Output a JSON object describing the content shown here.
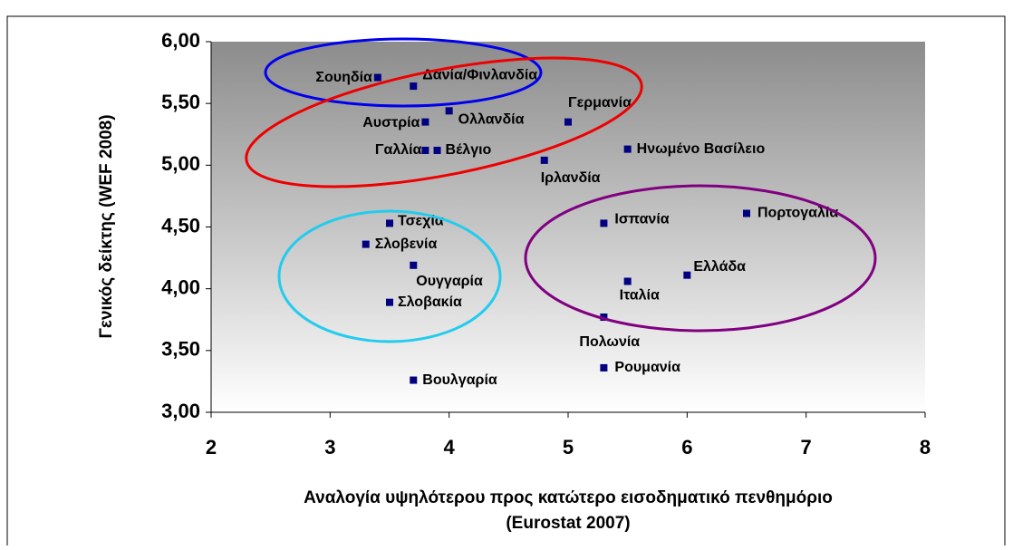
{
  "chart_data": {
    "type": "scatter",
    "x_label": "Αναλογία υψηλότερου προς κατώτερο εισοδηματικό πενθημόριο",
    "x_label_2": "(Eurostat 2007)",
    "y_label": "Γενικός δείκτης (WEF 2008)",
    "point_labels": [
      "Σουηδία",
      "Δανία/Φινλανδία",
      "Αυστρία",
      "Ολλανδία",
      "Γερμανία",
      "Γαλλία",
      "Βέλγιο",
      "Ιρλανδία",
      "Ηνωμένο Βασίλειο",
      "Τσεχία",
      "Σλοβενία",
      "Ουγγαρία",
      "Σλοβακία",
      "Βουλγαρία",
      "Ισπανία",
      "Πορτογαλία",
      "Ελλάδα",
      "Ιταλία",
      "Πολωνία",
      "Ρουμανία"
    ],
    "x": [
      3.4,
      3.7,
      3.8,
      4.0,
      5.0,
      3.8,
      3.9,
      4.8,
      5.5,
      3.5,
      3.3,
      3.7,
      3.5,
      3.7,
      5.3,
      6.5,
      6.0,
      5.5,
      5.3,
      5.3
    ],
    "values": [
      5.71,
      5.64,
      5.35,
      5.44,
      5.35,
      5.12,
      5.12,
      5.04,
      5.13,
      4.53,
      4.36,
      4.19,
      3.89,
      3.26,
      4.53,
      4.61,
      4.11,
      4.06,
      3.77,
      3.36
    ],
    "color": "#000080",
    "xlim": [
      2,
      8
    ],
    "xticks": [
      2,
      3,
      4,
      5,
      6,
      7,
      8
    ],
    "ylim": [
      3,
      6
    ],
    "yticks": [
      {
        "value": 3,
        "label": "3,00"
      },
      {
        "value": 3.5,
        "label": "3,50"
      },
      {
        "value": 4,
        "label": "4,00"
      },
      {
        "value": 4.5,
        "label": "4,50"
      },
      {
        "value": 5,
        "label": "5,00"
      },
      {
        "value": 5.5,
        "label": "5,50"
      },
      {
        "value": 6,
        "label": "6,00"
      }
    ]
  }
}
